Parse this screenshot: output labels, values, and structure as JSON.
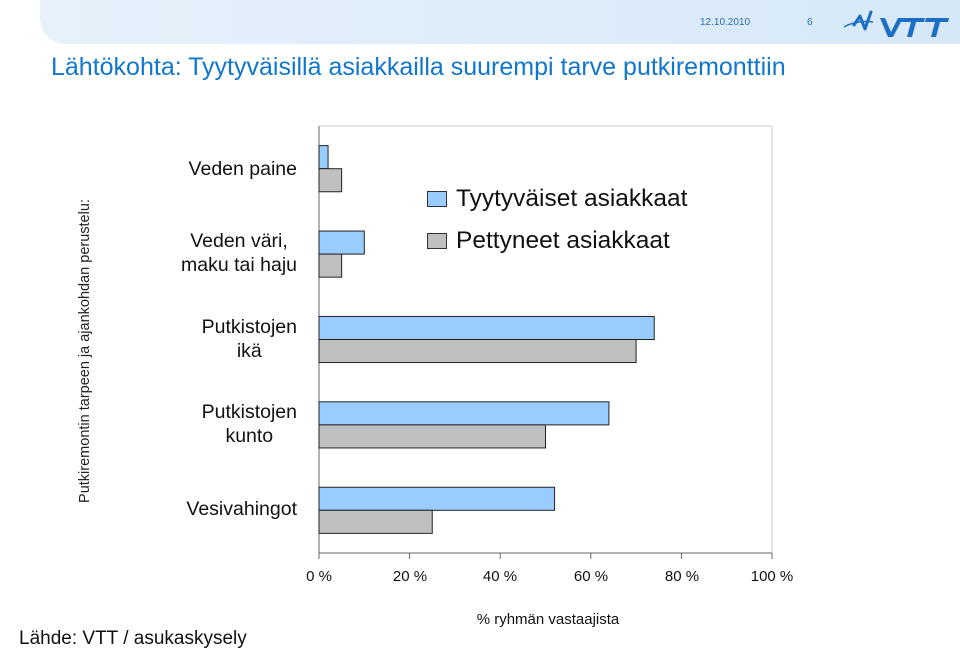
{
  "header": {
    "date": "12.10.2010",
    "page_number": "6",
    "logo_text": "VTT"
  },
  "slide": {
    "title": "Lähtökohta: Tyytyväisillä asiakkailla suurempi tarve putkiremonttiin",
    "source": "Lähde: VTT / asukaskysely"
  },
  "colors": {
    "accent": "#1177cc",
    "series_satisfied": "#99ccff",
    "series_disappointed": "#c0c0c0"
  },
  "chart_data": {
    "type": "bar",
    "orientation": "horizontal",
    "categories": [
      "Veden paine",
      "Veden väri,\nmaku tai haju",
      "Putkistojen\nikä",
      "Putkistojen\nkunto",
      "Vesivahingot"
    ],
    "series": [
      {
        "name": "Tyytyväiset asiakkaat",
        "values": [
          2,
          10,
          74,
          64,
          52
        ]
      },
      {
        "name": "Pettyneet asiakkaat",
        "values": [
          5,
          5,
          70,
          50,
          25
        ]
      }
    ],
    "xlim": [
      0,
      100
    ],
    "xticks": [
      "0 %",
      "20 %",
      "40 %",
      "60 %",
      "80 %",
      "100 %"
    ],
    "xlabel": "% ryhmän vastaajista",
    "ylabel": "Putkiremontin tarpeen ja ajankohdan perustelu:",
    "legend_position": "top-right, inside plot",
    "grid": false
  }
}
